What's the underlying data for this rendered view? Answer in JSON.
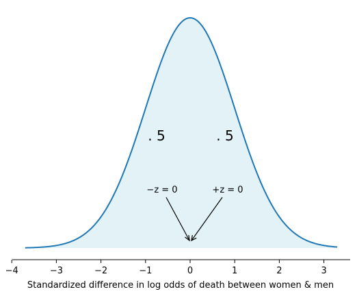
{
  "chart_data": {
    "type": "area",
    "title": "",
    "xlabel": "Standardized difference in log odds of death between women & men",
    "ylabel": "",
    "xlim": [
      -4,
      3.6
    ],
    "x_range": [
      -3.7,
      3.3
    ],
    "x_ticks": [
      -4,
      -3,
      -2,
      -1,
      0,
      1,
      2,
      3
    ],
    "x_tick_labels": [
      "−4",
      "−3",
      "−2",
      "−1",
      "0",
      "1",
      "2",
      "3"
    ],
    "y_axis_visible": false,
    "grid": false,
    "curve": "standard normal density",
    "mean": 0,
    "sd": 1,
    "line_color": "#1f77b4",
    "fill_color": "#e3f2f7",
    "annotations": {
      "left_area": ". 5",
      "right_area": ". 5",
      "left_z": "−z = 0",
      "right_z": "+z = 0"
    }
  }
}
